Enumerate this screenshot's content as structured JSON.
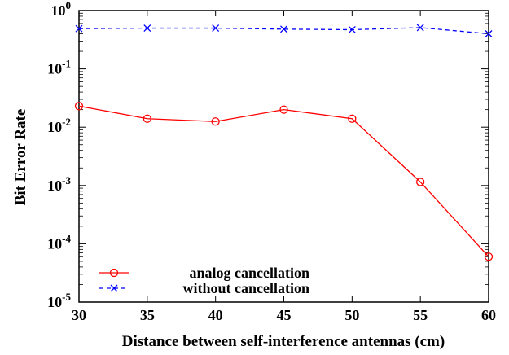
{
  "chart_data": {
    "type": "line",
    "xlabel": "Distance between self-interference antennas (cm)",
    "ylabel": "Bit Error Rate",
    "xlim": [
      30,
      60
    ],
    "ylim": [
      1e-05,
      1
    ],
    "y_scale": "log",
    "grid": false,
    "legend_position": "bottom-left",
    "x_ticks": [
      30,
      35,
      40,
      45,
      50,
      55,
      60
    ],
    "y_ticks": [
      {
        "value": 1e-05,
        "base": "10",
        "exp": "-5"
      },
      {
        "value": 0.0001,
        "base": "10",
        "exp": "-4"
      },
      {
        "value": 0.001,
        "base": "10",
        "exp": "-3"
      },
      {
        "value": 0.01,
        "base": "10",
        "exp": "-2"
      },
      {
        "value": 0.1,
        "base": "10",
        "exp": "-1"
      },
      {
        "value": 1,
        "base": "10",
        "exp": "0"
      }
    ],
    "x": [
      30,
      35,
      40,
      45,
      50,
      55,
      60
    ],
    "series": [
      {
        "name": "analog cancellation",
        "values": [
          0.023,
          0.014,
          0.0125,
          0.02,
          0.014,
          0.00115,
          6e-05
        ],
        "color": "#ff0000",
        "line_style": "solid",
        "marker": "circle"
      },
      {
        "name": "without cancellation",
        "values": [
          0.49,
          0.5,
          0.5,
          0.48,
          0.47,
          0.51,
          0.4
        ],
        "color": "#0000ff",
        "line_style": "dashed",
        "marker": "x"
      }
    ]
  }
}
